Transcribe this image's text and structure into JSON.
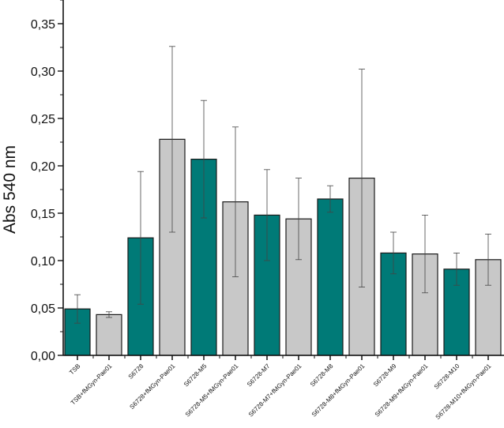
{
  "chart_data": {
    "type": "bar",
    "title": "",
    "xlabel": "",
    "ylabel": "Abs 540 nm",
    "ylim": [
      0,
      0.375
    ],
    "yticks": [
      "0,00",
      "0,05",
      "0,10",
      "0,15",
      "0,20",
      "0,25",
      "0,30",
      "0,35"
    ],
    "ytick_values": [
      0,
      0.05,
      0.1,
      0.15,
      0.2,
      0.25,
      0.3,
      0.35
    ],
    "grid": false,
    "categories": [
      "TSB",
      "TSB+fMGyn-Pae01",
      "S6728",
      "S6728+fMGyn-Pae01",
      "S6728-M5",
      "S6728-M5+fMGyn-Pae01",
      "S6728-M7",
      "S6728-M7+fMGyn-Pae01",
      "S6728-M8",
      "S6728-M8+fMGyn-Pae01",
      "S6728-M9",
      "S6728-M9+fMGyn-Pae01",
      "S6728-M10",
      "S6728-M10+fMGyn-Pae01"
    ],
    "values": [
      0.049,
      0.043,
      0.124,
      0.228,
      0.207,
      0.162,
      0.148,
      0.144,
      0.165,
      0.187,
      0.108,
      0.107,
      0.091,
      0.101
    ],
    "errors": [
      0.015,
      0.003,
      0.07,
      0.098,
      0.062,
      0.079,
      0.048,
      0.043,
      0.014,
      0.115,
      0.022,
      0.041,
      0.017,
      0.027
    ],
    "colors": {
      "phage_absent": "#007A77",
      "phage_present": "#C8C8C8",
      "edge": "#1a1a1a"
    }
  }
}
